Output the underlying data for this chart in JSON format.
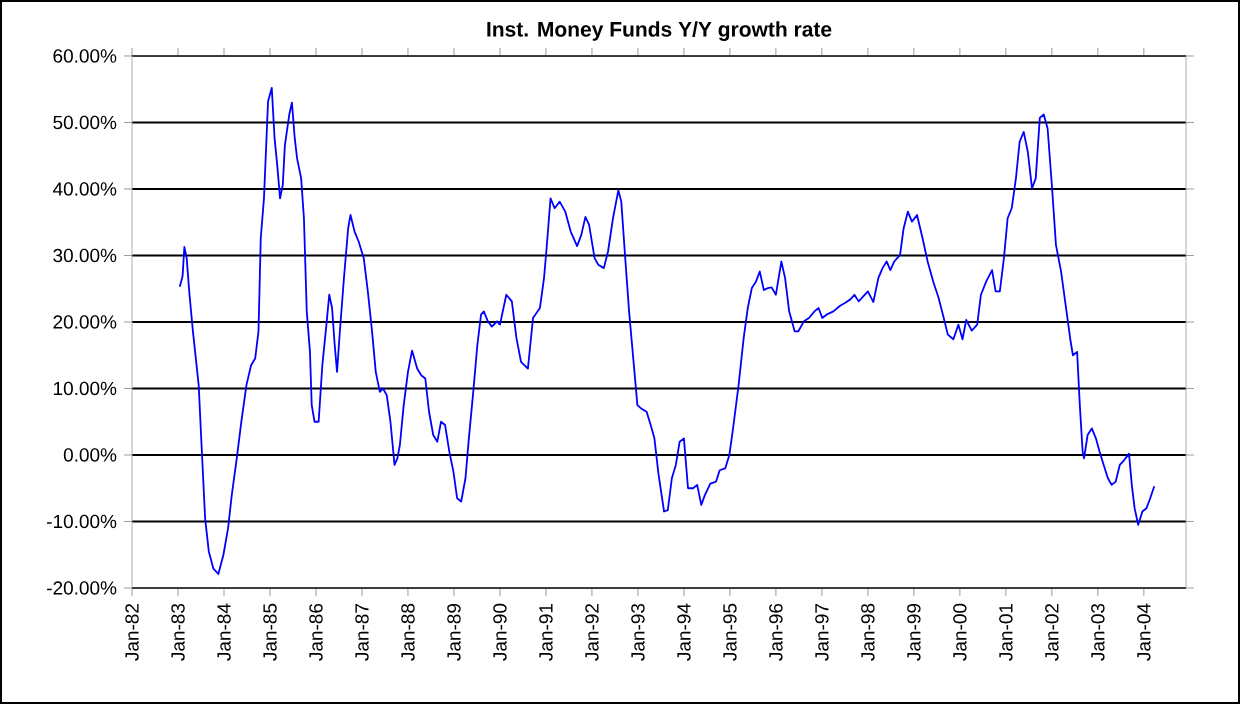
{
  "chart_data": {
    "type": "line",
    "title": "Inst. Money Funds Y/Y growth rate",
    "x": [
      "1983-01-15",
      "1983-02-07",
      "1983-02-21",
      "1983-03-09",
      "1983-04-01",
      "1983-04-28",
      "1983-06-13",
      "1983-07-04",
      "1983-08-03",
      "1983-09-02",
      "1983-10-08",
      "1983-11-17",
      "1983-12-27",
      "1984-02-03",
      "1984-03-02",
      "1984-04-11",
      "1984-05-17",
      "1984-06-27",
      "1984-08-03",
      "1984-09-05",
      "1984-10-01",
      "1984-10-19",
      "1984-11-14",
      "1984-12-16",
      "1985-01-15",
      "1985-02-07",
      "1985-02-28",
      "1985-03-20",
      "1985-04-11",
      "1985-04-28",
      "1985-06-02",
      "1985-06-23",
      "1985-07-15",
      "1985-08-03",
      "1985-09-05",
      "1985-09-27",
      "1985-10-19",
      "1985-11-14",
      "1985-11-28",
      "1985-12-20",
      "1986-01-22",
      "1986-02-21",
      "1986-03-23",
      "1986-04-15",
      "1986-05-07",
      "1986-05-28",
      "1986-06-16",
      "1986-07-08",
      "1986-08-10",
      "1986-09-13",
      "1986-10-01",
      "1986-11-03",
      "1986-12-05",
      "1987-01-15",
      "1987-02-17",
      "1987-03-20",
      "1987-04-19",
      "1987-05-21",
      "1987-06-16",
      "1987-07-15",
      "1987-08-14",
      "1987-09-16",
      "1987-10-08",
      "1987-10-28",
      "1987-11-28",
      "1988-01-01",
      "1988-02-03",
      "1988-03-13",
      "1988-04-15",
      "1988-05-17",
      "1988-06-16",
      "1988-07-19",
      "1988-08-21",
      "1988-09-20",
      "1988-10-22",
      "1988-11-25",
      "1988-12-27",
      "1989-01-26",
      "1989-02-28",
      "1989-04-01",
      "1989-04-28",
      "1989-06-02",
      "1989-07-04",
      "1989-08-03",
      "1989-08-25",
      "1989-09-27",
      "1989-10-28",
      "1989-12-09",
      "1990-01-01",
      "1990-02-21",
      "1990-04-04",
      "1990-05-10",
      "1990-06-16",
      "1990-08-10",
      "1990-09-20",
      "1990-11-14",
      "1990-12-16",
      "1991-01-04",
      "1991-02-07",
      "1991-03-09",
      "1991-04-19",
      "1991-06-02",
      "1991-07-15",
      "1991-09-05",
      "1991-10-08",
      "1991-11-10",
      "1991-12-09",
      "1992-01-22",
      "1992-02-21",
      "1992-04-04",
      "1992-05-07",
      "1992-06-16",
      "1992-07-28",
      "1992-08-21",
      "1992-09-20",
      "1992-10-22",
      "1992-11-25",
      "1992-12-27",
      "1993-01-26",
      "1993-03-09",
      "1993-04-11",
      "1993-05-10",
      "1993-06-13",
      "1993-07-26",
      "1993-08-25",
      "1993-09-27",
      "1993-10-28",
      "1993-11-28",
      "1994-01-01",
      "1994-02-03",
      "1994-03-13",
      "1994-04-15",
      "1994-05-17",
      "1994-06-16",
      "1994-07-28",
      "1994-09-13",
      "1994-10-11",
      "1994-11-25",
      "1994-12-27",
      "1995-01-26",
      "1995-03-09",
      "1995-04-19",
      "1995-05-21",
      "1995-06-23",
      "1995-07-26",
      "1995-08-25",
      "1995-09-27",
      "1995-10-28",
      "1995-11-28",
      "1996-01-01",
      "1996-02-14",
      "1996-03-13",
      "1996-04-15",
      "1996-05-28",
      "1996-06-27",
      "1996-08-10",
      "1996-09-20",
      "1996-11-03",
      "1996-12-05",
      "1997-01-04",
      "1997-02-07",
      "1997-04-01",
      "1997-05-21",
      "1997-07-04",
      "1997-08-14",
      "1997-09-16",
      "1997-10-19",
      "1998-01-01",
      "1998-02-14",
      "1998-03-23",
      "1998-04-26",
      "1998-05-28",
      "1998-06-27",
      "1998-07-28",
      "1998-09-13",
      "1998-10-11",
      "1998-11-14",
      "1998-12-16",
      "1999-01-26",
      "1999-03-09",
      "1999-04-19",
      "1999-06-02",
      "1999-07-15",
      "1999-08-25",
      "1999-09-27",
      "1999-11-10",
      "1999-12-20",
      "2000-01-22",
      "2000-02-21",
      "2000-04-04",
      "2000-05-17",
      "2000-06-16",
      "2000-07-28",
      "2000-09-13",
      "2000-10-11",
      "2000-11-14",
      "2000-12-16",
      "2001-01-15",
      "2001-02-17",
      "2001-03-20",
      "2001-04-19",
      "2001-05-21",
      "2001-06-23",
      "2001-07-26",
      "2001-08-25",
      "2001-09-27",
      "2001-10-28",
      "2001-11-28",
      "2002-01-01",
      "2002-02-03",
      "2002-03-13",
      "2002-04-26",
      "2002-05-28",
      "2002-06-16",
      "2002-07-19",
      "2002-08-10",
      "2002-09-02",
      "2002-09-13",
      "2002-10-11",
      "2002-11-14",
      "2002-12-16",
      "2003-01-15",
      "2003-02-17",
      "2003-03-20",
      "2003-04-19",
      "2003-05-21",
      "2003-06-23",
      "2003-07-26",
      "2003-09-05",
      "2003-09-27",
      "2003-10-19",
      "2003-11-17",
      "2003-12-20",
      "2004-01-22",
      "2004-02-21",
      "2004-03-23"
    ],
    "values": [
      25.3,
      26.9,
      31.3,
      29.6,
      24.1,
      18.6,
      10.5,
      2.0,
      -9.5,
      -14.5,
      -17.1,
      -17.9,
      -15.0,
      -11.0,
      -6.0,
      -0.5,
      5.0,
      10.5,
      13.5,
      14.5,
      18.6,
      32.6,
      38.6,
      53.2,
      55.2,
      47.6,
      43.6,
      38.6,
      40.6,
      46.6,
      51.2,
      53.0,
      47.6,
      44.6,
      41.6,
      35.6,
      21.6,
      15.5,
      7.5,
      5.0,
      5.0,
      13.5,
      19.6,
      24.1,
      22.1,
      16.5,
      12.5,
      18.6,
      26.6,
      34.1,
      36.1,
      33.6,
      32.1,
      29.6,
      24.6,
      18.6,
      12.5,
      9.5,
      10.0,
      9.0,
      5.0,
      -1.5,
      -0.5,
      1.5,
      7.5,
      12.5,
      15.7,
      13.0,
      12.0,
      11.5,
      6.5,
      3.0,
      2.0,
      5.0,
      4.5,
      0.5,
      -2.5,
      -6.5,
      -7.0,
      -3.5,
      2.5,
      9.5,
      16.5,
      21.1,
      21.6,
      20.1,
      19.3,
      20.1,
      19.6,
      24.1,
      23.1,
      17.6,
      14.0,
      13.0,
      20.6,
      22.1,
      26.6,
      30.6,
      38.6,
      37.1,
      38.1,
      36.6,
      33.6,
      31.4,
      33.1,
      35.8,
      34.6,
      29.6,
      28.6,
      28.1,
      30.6,
      35.6,
      39.8,
      38.1,
      30.1,
      21.6,
      14.5,
      7.5,
      7.0,
      6.5,
      4.5,
      2.5,
      -3.0,
      -8.5,
      -8.3,
      -3.5,
      -1.5,
      2.0,
      2.5,
      -5.0,
      -5.0,
      -4.5,
      -7.5,
      -6.0,
      -4.3,
      -4.0,
      -2.3,
      -2.0,
      0.0,
      4.0,
      10.5,
      17.6,
      22.1,
      25.1,
      26.1,
      27.6,
      24.8,
      25.1,
      25.2,
      24.1,
      29.1,
      26.6,
      21.6,
      18.6,
      18.6,
      20.1,
      20.6,
      21.6,
      22.1,
      20.6,
      21.1,
      21.6,
      22.4,
      22.9,
      23.4,
      24.1,
      23.1,
      24.6,
      23.0,
      26.6,
      28.1,
      29.1,
      27.8,
      29.1,
      30.1,
      34.1,
      36.6,
      35.1,
      36.1,
      32.6,
      29.1,
      26.1,
      23.6,
      20.6,
      18.1,
      17.4,
      19.6,
      17.4,
      20.3,
      18.7,
      19.6,
      24.1,
      26.1,
      27.8,
      24.6,
      24.6,
      29.6,
      35.6,
      37.1,
      41.6,
      47.1,
      48.6,
      45.6,
      40.1,
      41.6,
      50.7,
      51.2,
      49.1,
      40.6,
      31.6,
      27.6,
      21.6,
      17.1,
      15.0,
      15.5,
      7.5,
      0.5,
      -0.5,
      3.0,
      4.0,
      2.5,
      0.5,
      -1.5,
      -3.5,
      -4.5,
      -4.0,
      -1.5,
      -0.8,
      0.2,
      -4.5,
      -8.0,
      -10.5,
      -8.5,
      -8.0,
      -6.5,
      -4.7
    ],
    "color": "#0000ff",
    "marker": "none",
    "line_style": "solid",
    "grid": "y",
    "xlim": [
      "1982-01-01",
      "2004-12-01"
    ],
    "xticks": [
      {
        "value": "1982-01-01",
        "label": "Jan-82"
      },
      {
        "value": "1983-01-01",
        "label": "Jan-83"
      },
      {
        "value": "1984-01-01",
        "label": "Jan-84"
      },
      {
        "value": "1985-01-01",
        "label": "Jan-85"
      },
      {
        "value": "1986-01-01",
        "label": "Jan-86"
      },
      {
        "value": "1987-01-01",
        "label": "Jan-87"
      },
      {
        "value": "1988-01-01",
        "label": "Jan-88"
      },
      {
        "value": "1989-01-01",
        "label": "Jan-89"
      },
      {
        "value": "1990-01-01",
        "label": "Jan-90"
      },
      {
        "value": "1991-01-01",
        "label": "Jan-91"
      },
      {
        "value": "1992-01-01",
        "label": "Jan-92"
      },
      {
        "value": "1993-01-01",
        "label": "Jan-93"
      },
      {
        "value": "1994-01-01",
        "label": "Jan-94"
      },
      {
        "value": "1995-01-01",
        "label": "Jan-95"
      },
      {
        "value": "1996-01-01",
        "label": "Jan-96"
      },
      {
        "value": "1997-01-01",
        "label": "Jan-97"
      },
      {
        "value": "1998-01-01",
        "label": "Jan-98"
      },
      {
        "value": "1999-01-01",
        "label": "Jan-99"
      },
      {
        "value": "2000-01-01",
        "label": "Jan-00"
      },
      {
        "value": "2001-01-01",
        "label": "Jan-01"
      },
      {
        "value": "2002-01-01",
        "label": "Jan-02"
      },
      {
        "value": "2003-01-01",
        "label": "Jan-03"
      },
      {
        "value": "2004-01-01",
        "label": "Jan-04"
      }
    ],
    "ylim": [
      -20,
      60
    ],
    "yticks": [
      {
        "value": -20,
        "label": "-20.00%"
      },
      {
        "value": -10,
        "label": "-10.00%"
      },
      {
        "value": 0,
        "label": "0.00%"
      },
      {
        "value": 10,
        "label": "10.00%"
      },
      {
        "value": 20,
        "label": "20.00%"
      },
      {
        "value": 30,
        "label": "30.00%"
      },
      {
        "value": 40,
        "label": "40.00%"
      },
      {
        "value": 50,
        "label": "50.00%"
      },
      {
        "value": 60,
        "label": "60.00%"
      }
    ]
  }
}
